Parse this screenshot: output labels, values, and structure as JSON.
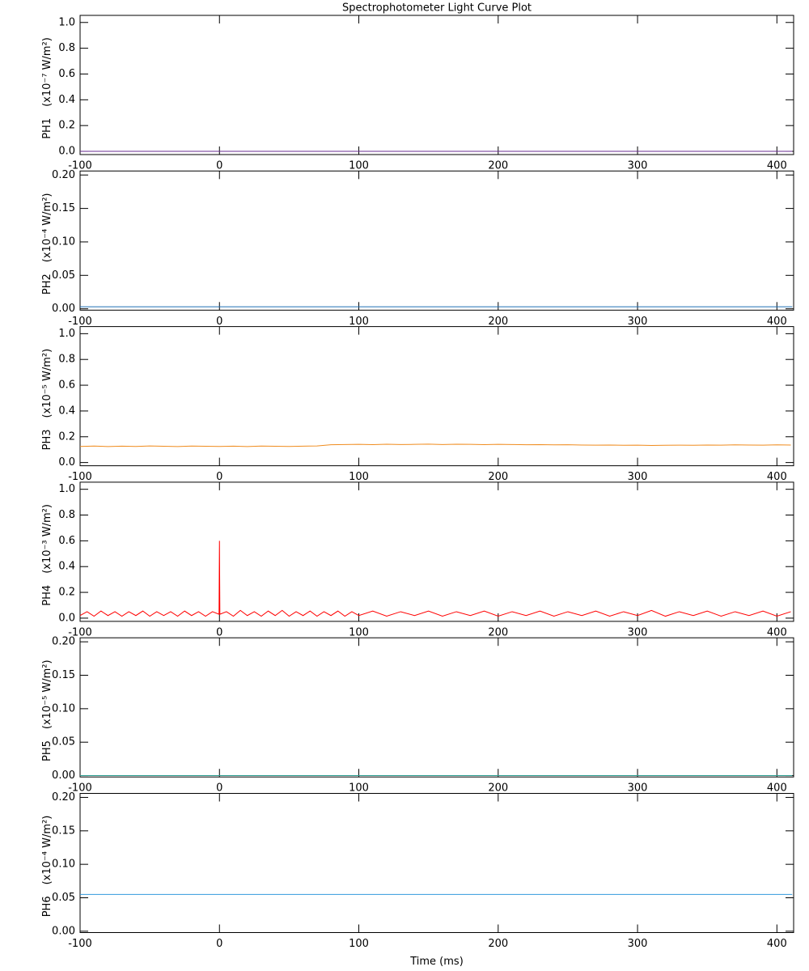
{
  "chart_data": [
    {
      "type": "line",
      "title": "Spectrophotometer Light Curve Plot",
      "ylabel": "PH1",
      "yunit": "(x10⁻⁷ W/m²)",
      "xlim": [
        -100,
        412
      ],
      "xticks": [
        -100,
        0,
        100,
        200,
        300,
        400
      ],
      "ylim": [
        -0.025,
        1.055
      ],
      "yticks": [
        {
          "value": 0,
          "label": "0.0"
        },
        0.2,
        0.4,
        0.6,
        0.8,
        {
          "value": 1,
          "label": "1.0"
        }
      ],
      "series": [
        {
          "color": "#6a2c91",
          "x": [
            -100,
            411
          ],
          "values": [
            0,
            0
          ]
        }
      ]
    },
    {
      "type": "line",
      "ylabel": "PH2",
      "yunit": "(x10⁻⁴ W/m²)",
      "xlim": [
        -100,
        412
      ],
      "xticks": [
        -100,
        0,
        100,
        200,
        300,
        400
      ],
      "ylim": [
        -0.002,
        0.206
      ],
      "yticks": [
        {
          "value": 0,
          "label": "0.00"
        },
        {
          "value": 0.05,
          "label": "0.05"
        },
        {
          "value": 0.1,
          "label": "0.10"
        },
        {
          "value": 0.15,
          "label": "0.15"
        },
        {
          "value": 0.2,
          "label": "0.20"
        }
      ],
      "series": [
        {
          "color": "#1f6fb4",
          "x": [
            -100,
            411
          ],
          "values": [
            0.003,
            0.003
          ]
        }
      ]
    },
    {
      "type": "line",
      "ylabel": "PH3",
      "yunit": "(x10⁻⁵ W/m²)",
      "xlim": [
        -100,
        412
      ],
      "xticks": [
        -100,
        0,
        100,
        200,
        300,
        400
      ],
      "ylim": [
        -0.025,
        1.055
      ],
      "yticks": [
        {
          "value": 0,
          "label": "0.0"
        },
        0.2,
        0.4,
        0.6,
        0.8,
        {
          "value": 1,
          "label": "1.0"
        }
      ],
      "series": [
        {
          "color": "#f08c1e",
          "x": [
            -100,
            -90,
            -80,
            -70,
            -60,
            -50,
            -40,
            -30,
            -20,
            -10,
            0,
            10,
            20,
            30,
            40,
            50,
            60,
            70,
            80,
            90,
            100,
            110,
            120,
            130,
            140,
            150,
            160,
            170,
            180,
            190,
            200,
            210,
            220,
            230,
            240,
            250,
            260,
            270,
            280,
            290,
            300,
            310,
            320,
            330,
            340,
            350,
            360,
            370,
            380,
            390,
            400,
            410
          ],
          "values": [
            0.125,
            0.128,
            0.124,
            0.127,
            0.125,
            0.129,
            0.126,
            0.124,
            0.128,
            0.126,
            0.125,
            0.127,
            0.124,
            0.128,
            0.126,
            0.125,
            0.127,
            0.129,
            0.138,
            0.14,
            0.141,
            0.139,
            0.142,
            0.14,
            0.141,
            0.143,
            0.14,
            0.142,
            0.141,
            0.139,
            0.141,
            0.14,
            0.138,
            0.139,
            0.137,
            0.138,
            0.136,
            0.135,
            0.136,
            0.134,
            0.135,
            0.133,
            0.134,
            0.135,
            0.134,
            0.136,
            0.135,
            0.137,
            0.136,
            0.135,
            0.137,
            0.136
          ]
        }
      ]
    },
    {
      "type": "line",
      "ylabel": "PH4",
      "yunit": "(x10⁻³ W/m²)",
      "xlim": [
        -100,
        412
      ],
      "xticks": [
        -100,
        0,
        100,
        200,
        300,
        400
      ],
      "ylim": [
        -0.025,
        1.055
      ],
      "yticks": [
        {
          "value": 0,
          "label": "0.0"
        },
        0.2,
        0.4,
        0.6,
        0.8,
        {
          "value": 1,
          "label": "1.0"
        }
      ],
      "series": [
        {
          "color": "#ff0000",
          "x": [
            -100,
            -95,
            -90,
            -85,
            -80,
            -75,
            -70,
            -65,
            -60,
            -55,
            -50,
            -45,
            -40,
            -35,
            -30,
            -25,
            -20,
            -15,
            -10,
            -5,
            -0.3,
            0,
            0.3,
            5,
            10,
            15,
            20,
            25,
            30,
            35,
            40,
            45,
            50,
            55,
            60,
            65,
            70,
            75,
            80,
            85,
            90,
            95,
            100,
            110,
            120,
            130,
            140,
            150,
            160,
            170,
            180,
            190,
            200,
            210,
            220,
            230,
            240,
            250,
            260,
            270,
            280,
            290,
            300,
            310,
            320,
            330,
            340,
            350,
            360,
            370,
            380,
            390,
            400,
            410
          ],
          "values": [
            0.02,
            0.05,
            0.015,
            0.055,
            0.02,
            0.05,
            0.015,
            0.05,
            0.02,
            0.055,
            0.015,
            0.05,
            0.02,
            0.05,
            0.015,
            0.055,
            0.02,
            0.05,
            0.015,
            0.05,
            0.03,
            0.6,
            0.03,
            0.05,
            0.015,
            0.06,
            0.02,
            0.05,
            0.015,
            0.055,
            0.02,
            0.06,
            0.015,
            0.05,
            0.02,
            0.055,
            0.015,
            0.05,
            0.02,
            0.055,
            0.015,
            0.05,
            0.02,
            0.055,
            0.015,
            0.05,
            0.02,
            0.055,
            0.015,
            0.05,
            0.02,
            0.055,
            0.015,
            0.05,
            0.02,
            0.055,
            0.015,
            0.05,
            0.02,
            0.055,
            0.015,
            0.05,
            0.02,
            0.06,
            0.015,
            0.05,
            0.02,
            0.055,
            0.015,
            0.05,
            0.02,
            0.055,
            0.015,
            0.05
          ]
        }
      ]
    },
    {
      "type": "line",
      "ylabel": "PH5",
      "yunit": "(x10⁻⁵ W/m²)",
      "xlim": [
        -100,
        412
      ],
      "xticks": [
        -100,
        0,
        100,
        200,
        300,
        400
      ],
      "ylim": [
        -0.002,
        0.206
      ],
      "yticks": [
        {
          "value": 0,
          "label": "0.00"
        },
        {
          "value": 0.05,
          "label": "0.05"
        },
        {
          "value": 0.1,
          "label": "0.10"
        },
        {
          "value": 0.15,
          "label": "0.15"
        },
        {
          "value": 0.2,
          "label": "0.20"
        }
      ],
      "series": [
        {
          "color": "#2a9d8f",
          "x": [
            -100,
            411
          ],
          "values": [
            0,
            0
          ]
        }
      ]
    },
    {
      "type": "line",
      "ylabel": "PH6",
      "yunit": "(x10⁻⁴ W/m²)",
      "xlabel": "Time (ms)",
      "xlim": [
        -100,
        412
      ],
      "xticks": [
        -100,
        0,
        100,
        200,
        300,
        400
      ],
      "ylim": [
        -0.002,
        0.206
      ],
      "yticks": [
        {
          "value": 0,
          "label": "0.00"
        },
        {
          "value": 0.05,
          "label": "0.05"
        },
        {
          "value": 0.1,
          "label": "0.10"
        },
        {
          "value": 0.15,
          "label": "0.15"
        },
        {
          "value": 0.2,
          "label": "0.20"
        }
      ],
      "series": [
        {
          "color": "#3399dd",
          "x": [
            -100,
            411
          ],
          "values": [
            0.055,
            0.055
          ]
        }
      ]
    }
  ]
}
